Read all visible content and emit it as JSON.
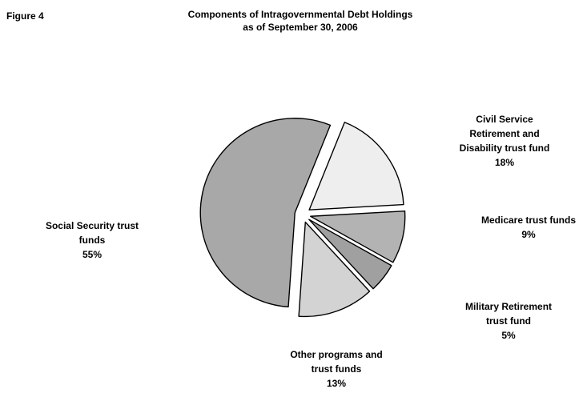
{
  "figure_label": "Figure 4",
  "title_lines": [
    "Components of Intragovernmental Debt Holdings",
    "as of September 30, 2006"
  ],
  "chart_data": {
    "type": "pie",
    "title": "Components of Intragovernmental Debt Holdings as of September 30, 2006",
    "unit": "%",
    "slices": [
      {
        "label": "Civil Service Retirement and Disability trust fund",
        "label_lines": [
          "Civil Service",
          "Retirement and",
          "Disability trust fund"
        ],
        "value": 18,
        "value_label": "18%",
        "color": "#eeeeee"
      },
      {
        "label": "Medicare trust funds",
        "label_lines": [
          "Medicare trust funds"
        ],
        "value": 9,
        "value_label": "9%",
        "color": "#b3b3b3"
      },
      {
        "label": "Military Retirement trust fund",
        "label_lines": [
          "Military Retirement",
          "trust fund"
        ],
        "value": 5,
        "value_label": "5%",
        "color": "#a0a0a0"
      },
      {
        "label": "Other programs and trust funds",
        "label_lines": [
          "Other programs and",
          "trust funds"
        ],
        "value": 13,
        "value_label": "13%",
        "color": "#d3d3d3"
      },
      {
        "label": "Social Security trust funds",
        "label_lines": [
          "Social Security trust",
          "funds"
        ],
        "value": 55,
        "value_label": "55%",
        "color": "#a8a8a8"
      }
    ]
  }
}
